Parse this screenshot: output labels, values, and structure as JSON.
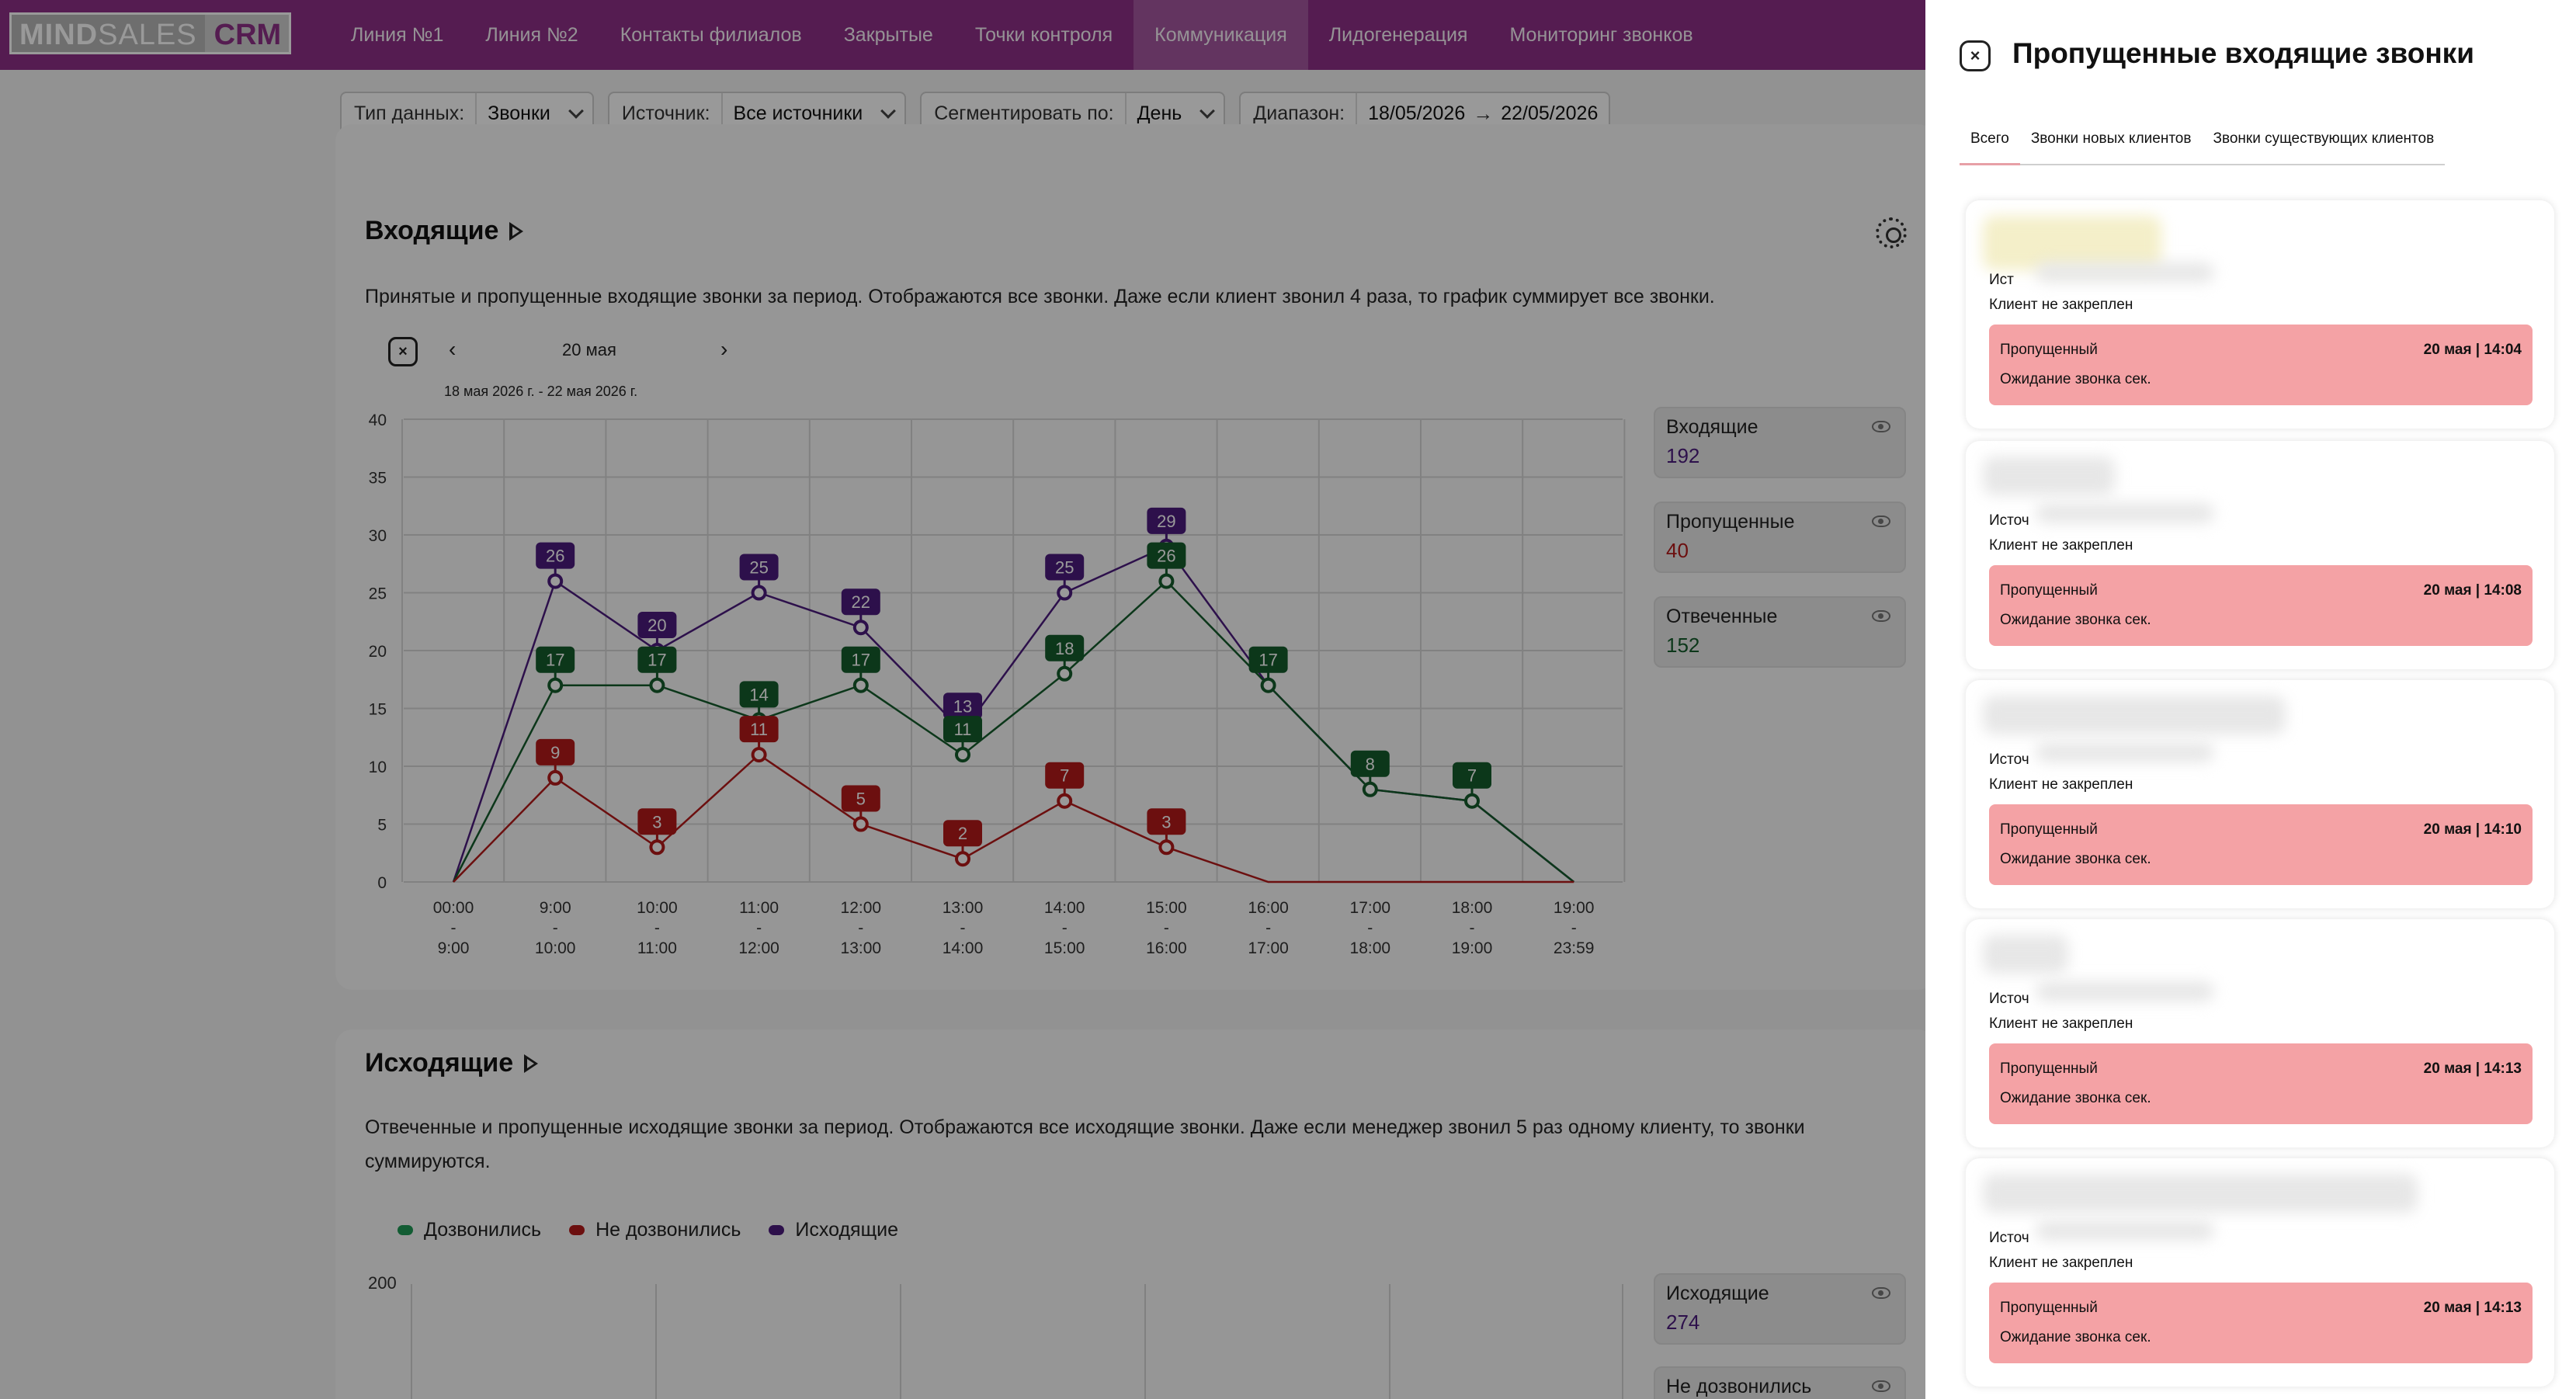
{
  "nav": {
    "logo_mind": "MIND",
    "logo_sales": "SALES",
    "logo_crm": "CRM",
    "items": [
      "Линия №1",
      "Линия №2",
      "Контакты филиалов",
      "Закрытые",
      "Точки контроля",
      "Коммуникация",
      "Лидогенерация",
      "Мониторинг звонков"
    ],
    "active_index": 5
  },
  "filters": {
    "type_label": "Тип данных:",
    "type_value": "Звонки",
    "source_label": "Источник:",
    "source_value": "Все источники",
    "segment_label": "Сегментировать по:",
    "segment_value": "День",
    "range_label": "Диапазон:",
    "range_from": "18/05/2026",
    "range_arrow": "→",
    "range_to": "22/05/2026"
  },
  "incoming": {
    "title": "Входящие",
    "description": "Принятые и пропущенные входящие звонки за период. Отображаются все звонки. Даже если клиент звонил 4 раза, то график суммирует все звонки.",
    "nav_date": "20 мая",
    "nav_range": "18 мая 2026 г. - 22 мая 2026 г.",
    "nav_close": "×",
    "nav_prev": "‹",
    "nav_next": "›",
    "legend": [
      {
        "name": "Входящие",
        "value": "192",
        "color": "#4b1b7e"
      },
      {
        "name": "Пропущенные",
        "value": "40",
        "color": "#b51a1a"
      },
      {
        "name": "Отвеченные",
        "value": "152",
        "color": "#145c2c"
      }
    ]
  },
  "chart_data": {
    "type": "line",
    "categories": [
      "00:00 - 9:00",
      "9:00 - 10:00",
      "10:00 - 11:00",
      "11:00 - 12:00",
      "12:00 - 13:00",
      "13:00 - 14:00",
      "14:00 - 15:00",
      "15:00 - 16:00",
      "16:00 - 17:00",
      "17:00 - 18:00",
      "18:00 - 19:00",
      "19:00 - 23:59"
    ],
    "xlabels_top": [
      "00:00",
      "9:00",
      "10:00",
      "11:00",
      "12:00",
      "13:00",
      "14:00",
      "15:00",
      "16:00",
      "17:00",
      "18:00",
      "19:00"
    ],
    "xlabels_bottom": [
      "9:00",
      "10:00",
      "11:00",
      "12:00",
      "13:00",
      "14:00",
      "15:00",
      "16:00",
      "17:00",
      "18:00",
      "19:00",
      "23:59"
    ],
    "yticks": [
      0,
      5,
      10,
      15,
      20,
      25,
      30,
      35,
      40
    ],
    "ylim": [
      0,
      40
    ],
    "grid": true,
    "series": [
      {
        "name": "Входящие",
        "color": "#4b1b7e",
        "values": [
          0,
          26,
          20,
          25,
          22,
          13,
          25,
          29,
          17,
          8,
          7,
          0
        ],
        "labeled": [
          false,
          true,
          true,
          true,
          true,
          true,
          true,
          true,
          false,
          false,
          false,
          false
        ]
      },
      {
        "name": "Отвеченные",
        "color": "#145c2c",
        "values": [
          0,
          17,
          17,
          14,
          17,
          11,
          18,
          26,
          17,
          8,
          7,
          0
        ],
        "labeled": [
          false,
          true,
          true,
          true,
          true,
          true,
          true,
          true,
          true,
          true,
          true,
          false
        ]
      },
      {
        "name": "Пропущенные",
        "color": "#b51a1a",
        "values": [
          0,
          9,
          3,
          11,
          5,
          2,
          7,
          3,
          0,
          0,
          0,
          0
        ],
        "labeled": [
          false,
          true,
          true,
          true,
          true,
          true,
          true,
          true,
          false,
          false,
          false,
          false
        ]
      }
    ]
  },
  "outgoing": {
    "title": "Исходящие",
    "description": "Отвеченные и пропущенные исходящие звонки за период. Отображаются все исходящие звонки. Даже если менеджер звонил 5 раз одному клиенту, то звонки суммируются.",
    "legend_inline": [
      {
        "name": "Дозвонились",
        "color": "#1f9a55"
      },
      {
        "name": "Не дозвонились",
        "color": "#b51a1a"
      },
      {
        "name": "Исходящие",
        "color": "#4b1b7e"
      }
    ],
    "y_top": "200",
    "legend": [
      {
        "name": "Исходящие",
        "value": "274",
        "color": "#4b1b7e"
      },
      {
        "name": "Не дозвонились",
        "value": "",
        "color": "#b51a1a"
      }
    ]
  },
  "panel": {
    "close": "×",
    "title": "Пропущенные входящие звонки",
    "tabs": [
      "Всего",
      "Звонки новых клиентов",
      "Звонки существующих клиентов"
    ],
    "active_tab": 0,
    "cards": [
      {
        "source": "Ист",
        "client": "Клиент не закреплен",
        "status": "Пропущенный",
        "datetime": "20 мая | 14:04",
        "wait": "Ожидание звонка сек."
      },
      {
        "source": "Источ",
        "client": "Клиент не закреплен",
        "status": "Пропущенный",
        "datetime": "20 мая | 14:08",
        "wait": "Ожидание звонка сек."
      },
      {
        "source": "Источ",
        "client": "Клиент не закреплен",
        "status": "Пропущенный",
        "datetime": "20 мая | 14:10",
        "wait": "Ожидание звонка сек."
      },
      {
        "source": "Источ",
        "client": "Клиент не закреплен",
        "status": "Пропущенный",
        "datetime": "20 мая | 14:13",
        "wait": "Ожидание звонка сек."
      },
      {
        "source": "Источ",
        "client": "Клиент не закреплен",
        "status": "Пропущенный",
        "datetime": "20 мая | 14:13",
        "wait": "Ожидание звонка сек."
      }
    ]
  }
}
